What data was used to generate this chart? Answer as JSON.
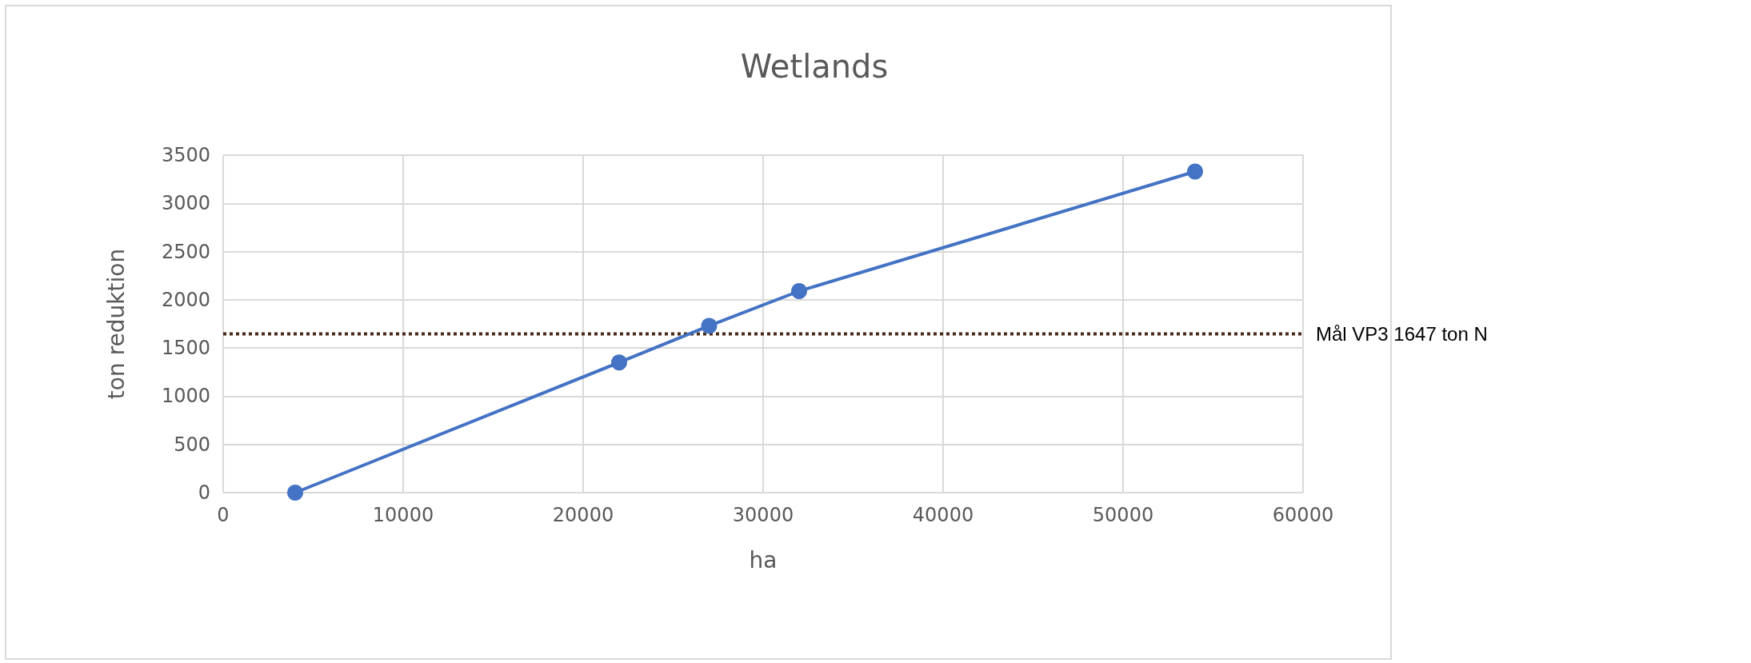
{
  "chart_data": {
    "type": "line",
    "title": "Wetlands",
    "xlabel": "ha",
    "ylabel": "ton reduktion",
    "x": [
      4000,
      22000,
      27000,
      32000,
      54000
    ],
    "series": [
      {
        "color": "#4472c4",
        "values": [
          0,
          1350,
          1730,
          2090,
          3330
        ]
      }
    ],
    "xlim": [
      0,
      60000
    ],
    "xticks": [
      0,
      10000,
      20000,
      30000,
      40000,
      50000,
      60000
    ],
    "ylim": [
      0,
      3500
    ],
    "yticks": [
      0,
      500,
      1000,
      1500,
      2000,
      2500,
      3000,
      3500
    ],
    "grid": true,
    "marker": "circle",
    "line_style": "solid",
    "ref_lines": [
      {
        "axis": "y",
        "value": 1647,
        "label": "Mål VP3 1647 ton N",
        "color": "#4a2c1a",
        "line_style": "dotted"
      }
    ]
  }
}
